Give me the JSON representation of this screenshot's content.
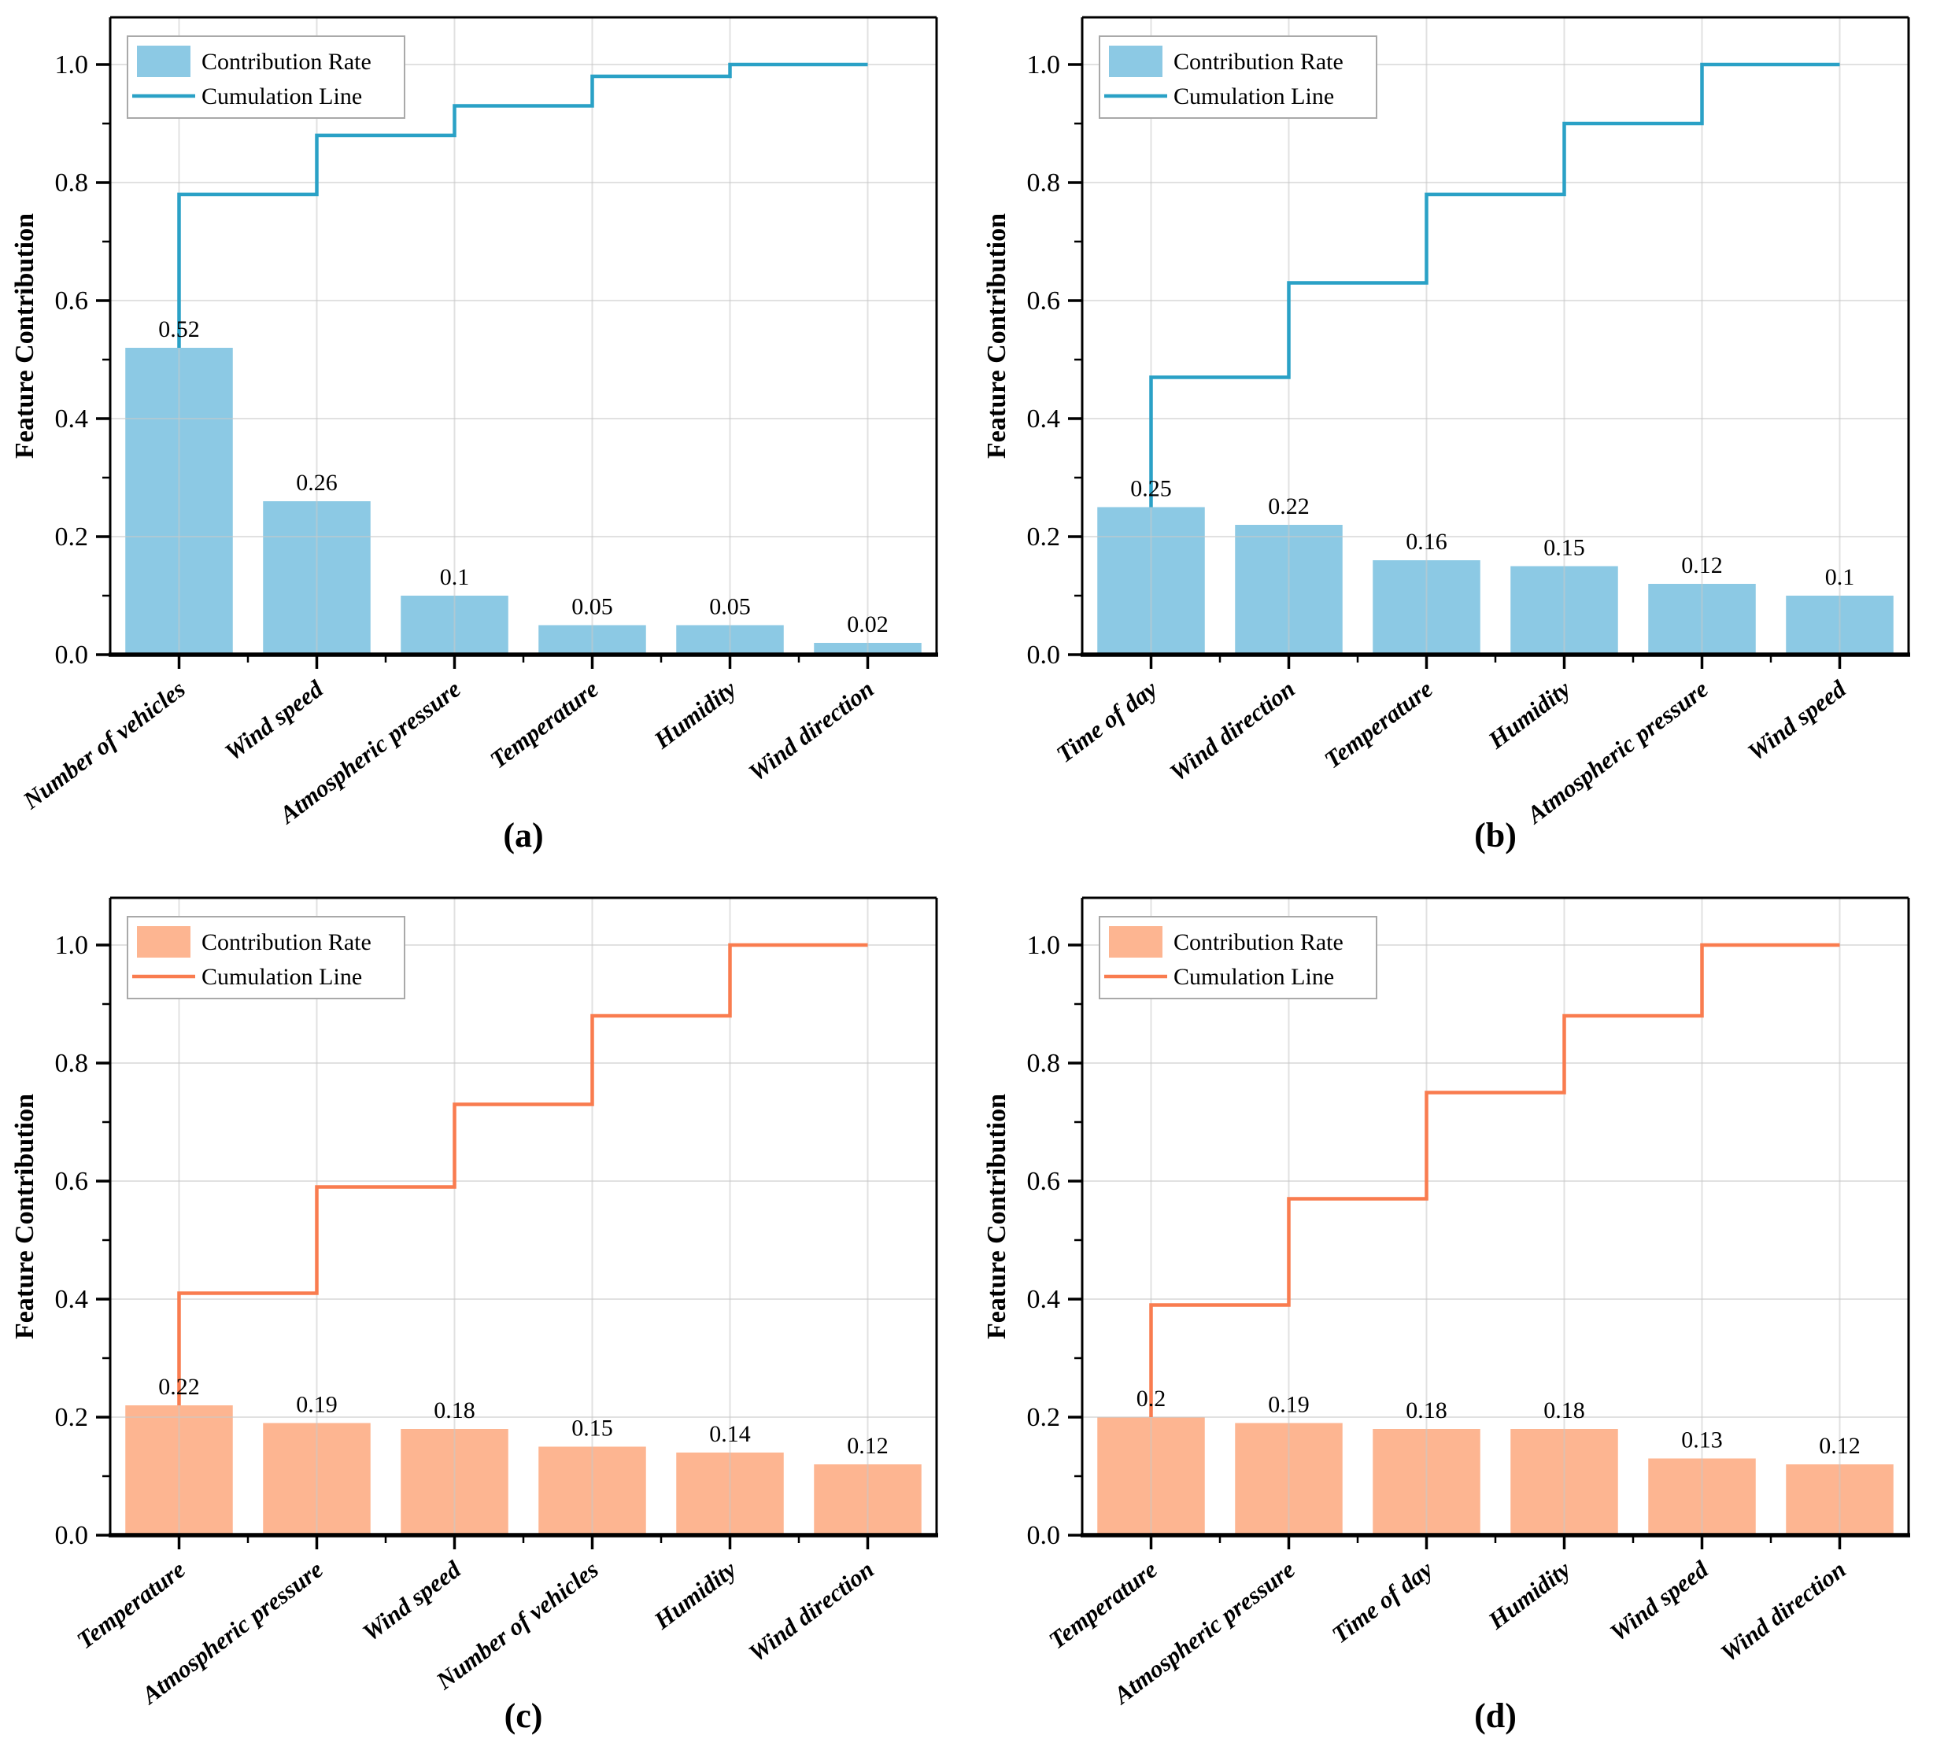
{
  "figure": {
    "background": "#ffffff",
    "axis_color": "#000000",
    "grid_color": "#c8c8c8",
    "text_color": "#000000"
  },
  "chart_data": [
    {
      "type": "bar",
      "panel": "a",
      "caption": "(a)",
      "categories": [
        "Number of vehicles",
        "Wind speed",
        "Atmospheric pressure",
        "Temperature",
        "Humidity",
        "Wind direction"
      ],
      "series": [
        {
          "name": "Contribution Rate",
          "kind": "bar",
          "color": "#8CC9E4",
          "values": [
            0.52,
            0.26,
            0.1,
            0.05,
            0.05,
            0.02
          ],
          "value_labels": [
            "0.52",
            "0.26",
            "0.1",
            "0.05",
            "0.05",
            "0.02"
          ]
        },
        {
          "name": "Cumulation Line",
          "kind": "step-line",
          "color": "#2AA1C6",
          "values": [
            0.52,
            0.78,
            0.88,
            0.93,
            0.98,
            1.0
          ]
        }
      ],
      "ylabel": "Feature Contribution",
      "ylim": [
        0,
        1.08
      ],
      "yticks": [
        0.0,
        0.2,
        0.4,
        0.6,
        0.8,
        1.0
      ],
      "ytick_labels": [
        "0.0",
        "0.2",
        "0.4",
        "0.6",
        "0.8",
        "1.0"
      ],
      "grid": true,
      "legend_position": "upper left"
    },
    {
      "type": "bar",
      "panel": "b",
      "caption": "(b)",
      "categories": [
        "Time of day",
        "Wind direction",
        "Temperature",
        "Humidity",
        "Atmospheric pressure",
        "Wind speed"
      ],
      "series": [
        {
          "name": "Contribution Rate",
          "kind": "bar",
          "color": "#8CC9E4",
          "values": [
            0.25,
            0.22,
            0.16,
            0.15,
            0.12,
            0.1
          ],
          "value_labels": [
            "0.25",
            "0.22",
            "0.16",
            "0.15",
            "0.12",
            "0.1"
          ]
        },
        {
          "name": "Cumulation Line",
          "kind": "step-line",
          "color": "#2AA1C6",
          "values": [
            0.25,
            0.47,
            0.63,
            0.78,
            0.9,
            1.0
          ]
        }
      ],
      "ylabel": "Feature Contribution",
      "ylim": [
        0,
        1.08
      ],
      "yticks": [
        0.0,
        0.2,
        0.4,
        0.6,
        0.8,
        1.0
      ],
      "ytick_labels": [
        "0.0",
        "0.2",
        "0.4",
        "0.6",
        "0.8",
        "1.0"
      ],
      "grid": true,
      "legend_position": "upper left"
    },
    {
      "type": "bar",
      "panel": "c",
      "caption": "(c)",
      "categories": [
        "Temperature",
        "Atmospheric pressure",
        "Wind speed",
        "Number of vehicles",
        "Humidity",
        "Wind direction"
      ],
      "series": [
        {
          "name": "Contribution Rate",
          "kind": "bar",
          "color": "#FDB591",
          "values": [
            0.22,
            0.19,
            0.18,
            0.15,
            0.14,
            0.12
          ],
          "value_labels": [
            "0.22",
            "0.19",
            "0.18",
            "0.15",
            "0.14",
            "0.12"
          ]
        },
        {
          "name": "Cumulation Line",
          "kind": "step-line",
          "color": "#F97C4F",
          "values": [
            0.22,
            0.41,
            0.59,
            0.73,
            0.88,
            1.0
          ]
        }
      ],
      "ylabel": "Feature Contribution",
      "ylim": [
        0,
        1.08
      ],
      "yticks": [
        0.0,
        0.2,
        0.4,
        0.6,
        0.8,
        1.0
      ],
      "ytick_labels": [
        "0.0",
        "0.2",
        "0.4",
        "0.6",
        "0.8",
        "1.0"
      ],
      "grid": true,
      "legend_position": "upper left"
    },
    {
      "type": "bar",
      "panel": "d",
      "caption": "(d)",
      "categories": [
        "Temperature",
        "Atmospheric pressure",
        "Time of day",
        "Humidity",
        "Wind speed",
        "Wind direction"
      ],
      "series": [
        {
          "name": "Contribution Rate",
          "kind": "bar",
          "color": "#FDB591",
          "values": [
            0.2,
            0.19,
            0.18,
            0.18,
            0.13,
            0.12
          ],
          "value_labels": [
            "0.2",
            "0.19",
            "0.18",
            "0.18",
            "0.13",
            "0.12"
          ]
        },
        {
          "name": "Cumulation Line",
          "kind": "step-line",
          "color": "#F97C4F",
          "values": [
            0.2,
            0.39,
            0.57,
            0.75,
            0.88,
            1.0
          ]
        }
      ],
      "ylabel": "Feature Contribution",
      "ylim": [
        0,
        1.08
      ],
      "yticks": [
        0.0,
        0.2,
        0.4,
        0.6,
        0.8,
        1.0
      ],
      "ytick_labels": [
        "0.0",
        "0.2",
        "0.4",
        "0.6",
        "0.8",
        "1.0"
      ],
      "grid": true,
      "legend_position": "upper left"
    }
  ]
}
